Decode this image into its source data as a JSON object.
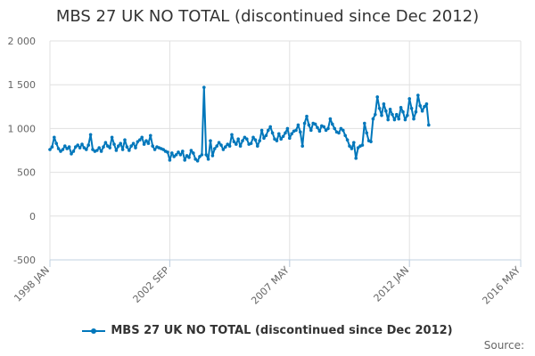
{
  "title": "MBS 27 UK NO TOTAL (discontinued since Dec 2012)",
  "source_label": "Source:",
  "legend_label": "MBS 27 UK NO TOTAL (discontinued since Dec 2012)",
  "colors": {
    "series": "#0077bb",
    "grid": "#e0e0e0",
    "axis": "#c0d0e0"
  },
  "chart_data": {
    "type": "line",
    "title": "MBS 27 UK NO TOTAL (discontinued since Dec 2012)",
    "xlabel": "",
    "ylabel": "",
    "ylim": [
      -500,
      2000
    ],
    "y_ticks": [
      -500,
      0,
      500,
      1000,
      1500,
      2000
    ],
    "y_tick_labels": [
      "-500",
      "0",
      "500",
      "1 000",
      "1 500",
      "2 000"
    ],
    "x_range": [
      "1998-01",
      "2016-05"
    ],
    "x_ticks": [
      "1998-01",
      "2002-09",
      "2007-05",
      "2012-01",
      "2016-05"
    ],
    "x_tick_labels": [
      "1998 JAN",
      "2002 SEP",
      "2007 MAY",
      "2012 JAN",
      "2016 MAY"
    ],
    "grid": true,
    "legend_position": "bottom",
    "series": [
      {
        "name": "MBS 27 UK NO TOTAL (discontinued since Dec 2012)",
        "points": [
          [
            "1998-01",
            760
          ],
          [
            "1998-02",
            790
          ],
          [
            "1998-03",
            900
          ],
          [
            "1998-04",
            830
          ],
          [
            "1998-05",
            770
          ],
          [
            "1998-06",
            740
          ],
          [
            "1998-07",
            760
          ],
          [
            "1998-08",
            800
          ],
          [
            "1998-09",
            770
          ],
          [
            "1998-10",
            790
          ],
          [
            "1998-11",
            710
          ],
          [
            "1998-12",
            740
          ],
          [
            "1999-01",
            790
          ],
          [
            "1999-02",
            810
          ],
          [
            "1999-03",
            780
          ],
          [
            "1999-04",
            820
          ],
          [
            "1999-05",
            780
          ],
          [
            "1999-06",
            760
          ],
          [
            "1999-07",
            810
          ],
          [
            "1999-08",
            930
          ],
          [
            "1999-09",
            760
          ],
          [
            "1999-10",
            740
          ],
          [
            "1999-11",
            750
          ],
          [
            "1999-12",
            780
          ],
          [
            "2000-01",
            740
          ],
          [
            "2000-02",
            790
          ],
          [
            "2000-03",
            840
          ],
          [
            "2000-04",
            800
          ],
          [
            "2000-05",
            780
          ],
          [
            "2000-06",
            900
          ],
          [
            "2000-07",
            820
          ],
          [
            "2000-08",
            750
          ],
          [
            "2000-09",
            800
          ],
          [
            "2000-10",
            830
          ],
          [
            "2000-11",
            760
          ],
          [
            "2000-12",
            870
          ],
          [
            "2001-01",
            790
          ],
          [
            "2001-02",
            750
          ],
          [
            "2001-03",
            800
          ],
          [
            "2001-04",
            830
          ],
          [
            "2001-05",
            780
          ],
          [
            "2001-06",
            850
          ],
          [
            "2001-07",
            870
          ],
          [
            "2001-08",
            900
          ],
          [
            "2001-09",
            820
          ],
          [
            "2001-10",
            860
          ],
          [
            "2001-11",
            830
          ],
          [
            "2001-12",
            920
          ],
          [
            "2002-01",
            800
          ],
          [
            "2002-02",
            760
          ],
          [
            "2002-03",
            790
          ],
          [
            "2002-04",
            780
          ],
          [
            "2002-05",
            770
          ],
          [
            "2002-06",
            760
          ],
          [
            "2002-07",
            740
          ],
          [
            "2002-08",
            730
          ],
          [
            "2002-09",
            640
          ],
          [
            "2002-10",
            720
          ],
          [
            "2002-11",
            680
          ],
          [
            "2002-12",
            700
          ],
          [
            "2003-01",
            730
          ],
          [
            "2003-02",
            700
          ],
          [
            "2003-03",
            740
          ],
          [
            "2003-04",
            640
          ],
          [
            "2003-05",
            690
          ],
          [
            "2003-06",
            670
          ],
          [
            "2003-07",
            750
          ],
          [
            "2003-08",
            720
          ],
          [
            "2003-09",
            650
          ],
          [
            "2003-10",
            630
          ],
          [
            "2003-11",
            680
          ],
          [
            "2003-12",
            700
          ],
          [
            "2004-01",
            1470
          ],
          [
            "2004-02",
            700
          ],
          [
            "2004-03",
            650
          ],
          [
            "2004-04",
            860
          ],
          [
            "2004-05",
            690
          ],
          [
            "2004-06",
            770
          ],
          [
            "2004-07",
            800
          ],
          [
            "2004-08",
            840
          ],
          [
            "2004-09",
            810
          ],
          [
            "2004-10",
            760
          ],
          [
            "2004-11",
            790
          ],
          [
            "2004-12",
            820
          ],
          [
            "2005-01",
            800
          ],
          [
            "2005-02",
            930
          ],
          [
            "2005-03",
            850
          ],
          [
            "2005-04",
            820
          ],
          [
            "2005-05",
            880
          ],
          [
            "2005-06",
            800
          ],
          [
            "2005-07",
            860
          ],
          [
            "2005-08",
            900
          ],
          [
            "2005-09",
            880
          ],
          [
            "2005-10",
            820
          ],
          [
            "2005-11",
            830
          ],
          [
            "2005-12",
            900
          ],
          [
            "2006-01",
            870
          ],
          [
            "2006-02",
            800
          ],
          [
            "2006-03",
            860
          ],
          [
            "2006-04",
            980
          ],
          [
            "2006-05",
            890
          ],
          [
            "2006-06",
            920
          ],
          [
            "2006-07",
            980
          ],
          [
            "2006-08",
            1020
          ],
          [
            "2006-09",
            950
          ],
          [
            "2006-10",
            880
          ],
          [
            "2006-11",
            860
          ],
          [
            "2006-12",
            940
          ],
          [
            "2007-01",
            880
          ],
          [
            "2007-02",
            910
          ],
          [
            "2007-03",
            950
          ],
          [
            "2007-04",
            1000
          ],
          [
            "2007-05",
            890
          ],
          [
            "2007-06",
            940
          ],
          [
            "2007-07",
            970
          ],
          [
            "2007-08",
            980
          ],
          [
            "2007-09",
            1040
          ],
          [
            "2007-10",
            960
          ],
          [
            "2007-11",
            800
          ],
          [
            "2007-12",
            1060
          ],
          [
            "2008-01",
            1140
          ],
          [
            "2008-02",
            1040
          ],
          [
            "2008-03",
            980
          ],
          [
            "2008-04",
            1060
          ],
          [
            "2008-05",
            1050
          ],
          [
            "2008-06",
            1010
          ],
          [
            "2008-07",
            970
          ],
          [
            "2008-08",
            1030
          ],
          [
            "2008-09",
            1020
          ],
          [
            "2008-10",
            980
          ],
          [
            "2008-11",
            1000
          ],
          [
            "2008-12",
            1110
          ],
          [
            "2009-01",
            1050
          ],
          [
            "2009-02",
            1000
          ],
          [
            "2009-03",
            960
          ],
          [
            "2009-04",
            950
          ],
          [
            "2009-05",
            1000
          ],
          [
            "2009-06",
            980
          ],
          [
            "2009-07",
            920
          ],
          [
            "2009-08",
            870
          ],
          [
            "2009-09",
            800
          ],
          [
            "2009-10",
            770
          ],
          [
            "2009-11",
            840
          ],
          [
            "2009-12",
            660
          ],
          [
            "2010-01",
            780
          ],
          [
            "2010-02",
            800
          ],
          [
            "2010-03",
            810
          ],
          [
            "2010-04",
            1060
          ],
          [
            "2010-05",
            950
          ],
          [
            "2010-06",
            860
          ],
          [
            "2010-07",
            850
          ],
          [
            "2010-08",
            1110
          ],
          [
            "2010-09",
            1160
          ],
          [
            "2010-10",
            1360
          ],
          [
            "2010-11",
            1230
          ],
          [
            "2010-12",
            1150
          ],
          [
            "2011-01",
            1280
          ],
          [
            "2011-02",
            1200
          ],
          [
            "2011-03",
            1100
          ],
          [
            "2011-04",
            1220
          ],
          [
            "2011-05",
            1160
          ],
          [
            "2011-06",
            1100
          ],
          [
            "2011-07",
            1160
          ],
          [
            "2011-08",
            1110
          ],
          [
            "2011-09",
            1240
          ],
          [
            "2011-10",
            1190
          ],
          [
            "2011-11",
            1100
          ],
          [
            "2011-12",
            1150
          ],
          [
            "2012-01",
            1340
          ],
          [
            "2012-02",
            1230
          ],
          [
            "2012-03",
            1110
          ],
          [
            "2012-04",
            1190
          ],
          [
            "2012-05",
            1380
          ],
          [
            "2012-06",
            1260
          ],
          [
            "2012-07",
            1200
          ],
          [
            "2012-08",
            1250
          ],
          [
            "2012-09",
            1280
          ],
          [
            "2012-10",
            1040
          ]
        ]
      }
    ]
  }
}
